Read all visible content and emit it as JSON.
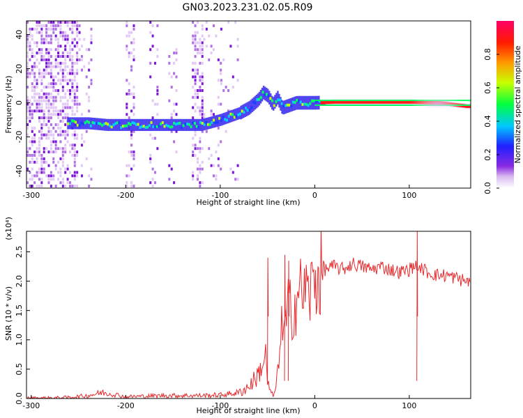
{
  "figure": {
    "title": "GN03.2023.231.02.05.R09"
  },
  "chart_data": [
    {
      "type": "heatmap",
      "name": "spectrogram",
      "xlabel": "Height of straight line (km)",
      "ylabel": "Frequency (Hz)",
      "xlim": [
        -305,
        165
      ],
      "ylim": [
        -50,
        48
      ],
      "xticks": [
        -300,
        -200,
        -100,
        0,
        100
      ],
      "yticks": [
        -40,
        -20,
        0,
        20,
        40
      ],
      "colorbar": {
        "label": "Normalized spectral amplitude",
        "range": [
          0,
          1
        ],
        "ticks": [
          0.0,
          0.2,
          0.4,
          0.6,
          0.8
        ],
        "colormap": "white-purple-blue-cyan-green-yellow-orange-red-magenta"
      },
      "ridge": {
        "x": [
          -260,
          -240,
          -220,
          -200,
          -180,
          -160,
          -140,
          -120,
          -100,
          -80,
          -70,
          -60,
          -55,
          -50,
          -45,
          -40,
          -35,
          -30,
          -20,
          -10,
          0,
          20,
          60,
          100,
          130,
          160
        ],
        "y": [
          -12,
          -12,
          -13,
          -13,
          -13,
          -13,
          -13,
          -13,
          -10,
          -6,
          -3,
          2,
          6,
          4,
          -1,
          3,
          -3,
          -2,
          0,
          0,
          0,
          0.5,
          0.5,
          0.5,
          0,
          -2
        ]
      }
    },
    {
      "type": "line",
      "name": "snr",
      "xlabel": "Height of straight line (km)",
      "ylabel": "SNR (10 * v/v)",
      "multiplier": "(x10⁴)",
      "xlim": [
        -305,
        165
      ],
      "ylim": [
        0,
        2.85
      ],
      "xticks": [
        -300,
        -200,
        -100,
        0,
        100
      ],
      "yticks": [
        "0.0",
        "0.5",
        "1.0",
        "1.5",
        "2.0",
        "2.5"
      ],
      "color": "#e8272b",
      "series": [
        {
          "x": [
            -305,
            -280,
            -260,
            -240,
            -225,
            -215,
            -200,
            -180,
            -160,
            -140,
            -120,
            -100,
            -80,
            -70,
            -60,
            -55,
            -52,
            -50,
            -47,
            -45,
            -42,
            -40,
            -38,
            -35,
            -32,
            -30,
            -28,
            -25,
            -22,
            -20,
            -18,
            -15,
            -12,
            -10,
            -8,
            -5,
            -2,
            0,
            5,
            10,
            20,
            30,
            40,
            50,
            60,
            70,
            80,
            90,
            100,
            105,
            108,
            110,
            112,
            115,
            120,
            130,
            140,
            150,
            160,
            165
          ],
          "y": [
            0.01,
            0.01,
            0.02,
            0.05,
            0.1,
            0.08,
            0.03,
            0.04,
            0.05,
            0.05,
            0.05,
            0.06,
            0.1,
            0.2,
            0.4,
            0.6,
            0.7,
            0.3,
            0.1,
            0.05,
            0.1,
            0.3,
            0.8,
            1.2,
            1.1,
            1.3,
            1.5,
            1.6,
            1.5,
            1.7,
            1.8,
            1.8,
            1.9,
            1.75,
            1.85,
            1.8,
            1.9,
            2.0,
            2.1,
            2.2,
            2.25,
            2.2,
            2.3,
            2.25,
            2.2,
            2.25,
            2.2,
            2.15,
            2.2,
            2.25,
            2.3,
            2.1,
            2.25,
            2.2,
            2.15,
            2.1,
            2.1,
            2.05,
            2.0,
            2.0
          ]
        }
      ]
    }
  ]
}
